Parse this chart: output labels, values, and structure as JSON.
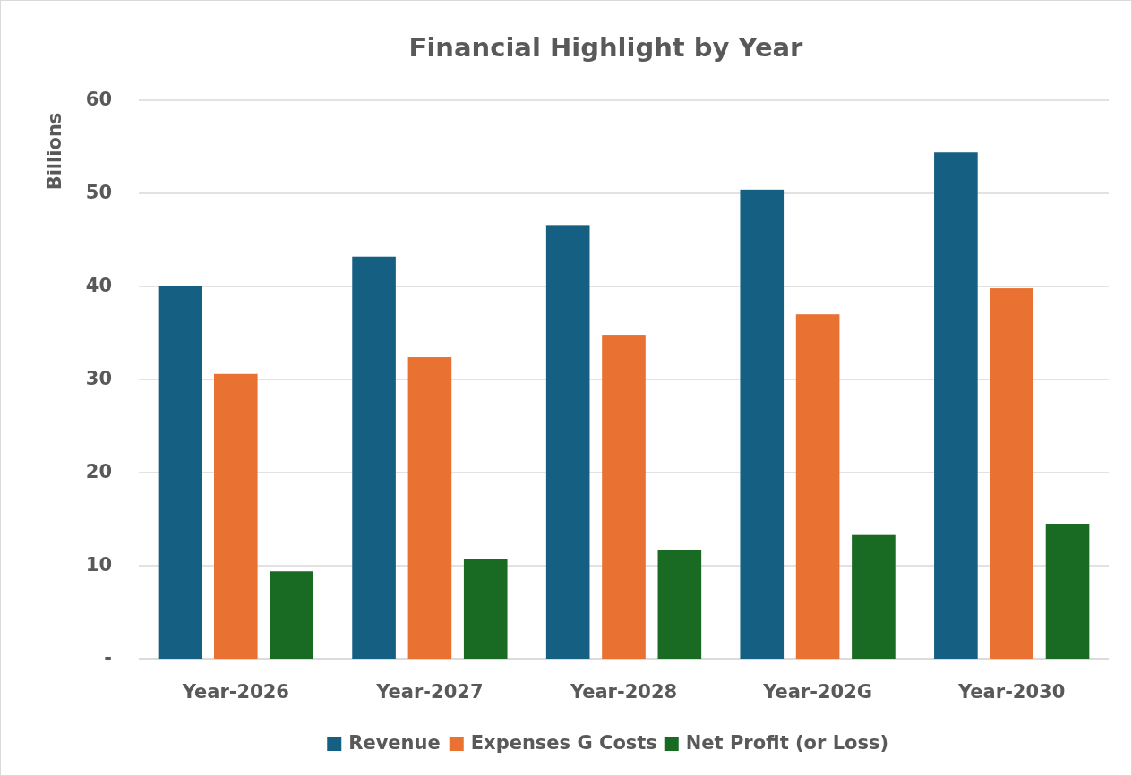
{
  "chart_data": {
    "type": "bar",
    "title": "Financial Highlight by  Year",
    "ylabel": "Billions",
    "categories": [
      "Year-2026",
      "Year-2027",
      "Year-2028",
      "Year-202G",
      "Year-2030"
    ],
    "series": [
      {
        "name": "Revenue",
        "color": "#156082",
        "values": [
          40.0,
          43.2,
          46.6,
          50.4,
          54.4
        ]
      },
      {
        "name": "Expenses G Costs",
        "color": "#e97132",
        "values": [
          30.6,
          32.4,
          34.8,
          37.0,
          39.8
        ]
      },
      {
        "name": "Net Profit (or Loss)",
        "color": "#196b24",
        "values": [
          9.4,
          10.7,
          11.7,
          13.3,
          14.5
        ]
      }
    ],
    "ylim": [
      0,
      60
    ],
    "yticks": [
      {
        "value": 0,
        "label": "-"
      },
      10,
      20,
      30,
      40,
      50,
      60
    ],
    "grid": "y",
    "legend": "bottom"
  }
}
